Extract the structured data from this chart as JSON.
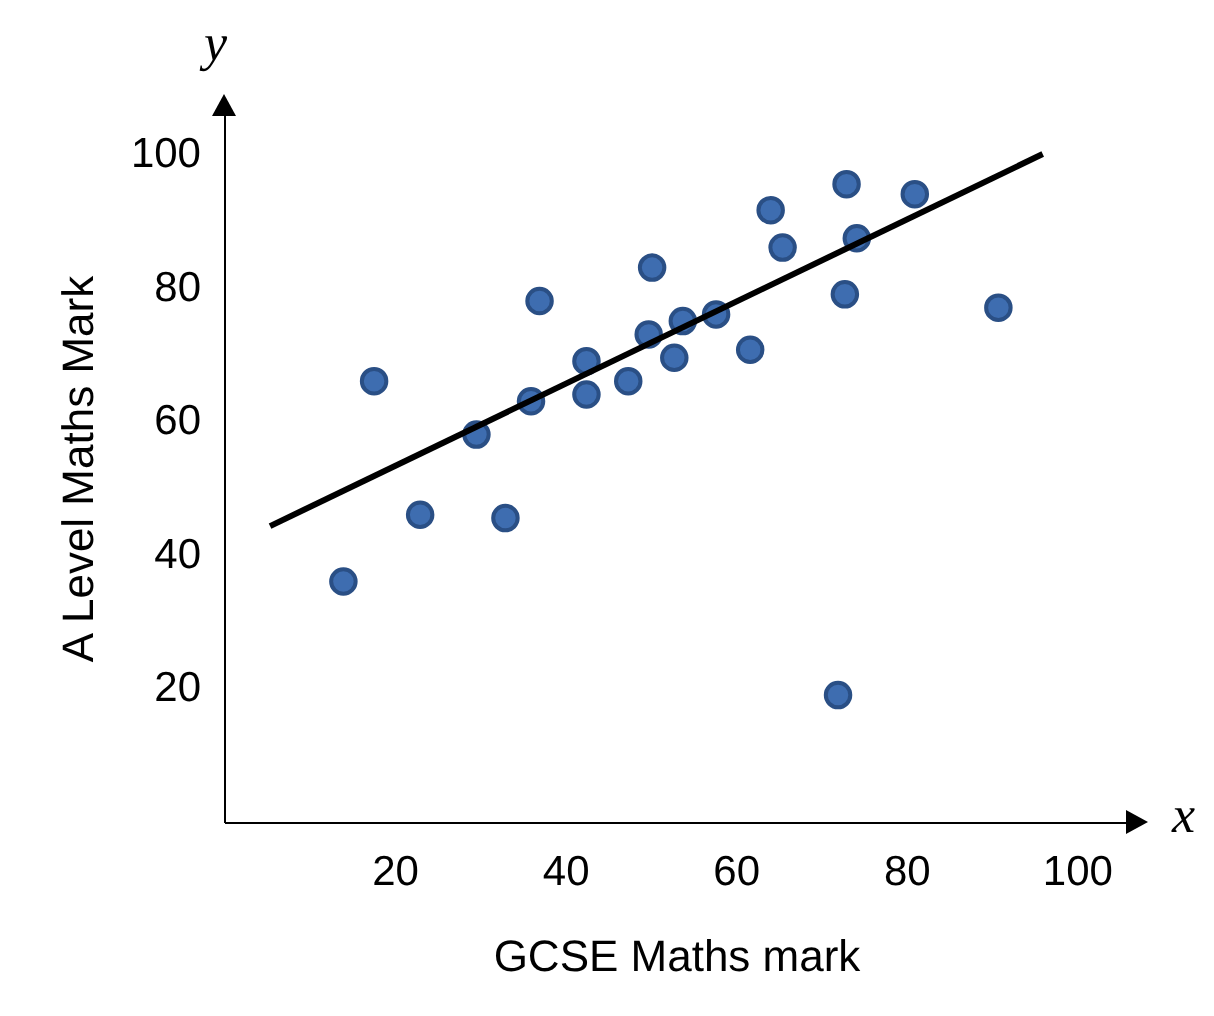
{
  "chart_data": {
    "type": "scatter",
    "xlabel": "GCSE Maths mark",
    "ylabel": "A Level Maths Mark",
    "annotations": [
      "x",
      "y"
    ],
    "xlim": [
      0,
      106
    ],
    "ylim": [
      0,
      106
    ],
    "xticks": [
      20,
      40,
      60,
      80,
      100
    ],
    "yticks": [
      20,
      40,
      60,
      80,
      100
    ],
    "grid": false,
    "series": [
      {
        "marker": "circle",
        "color": "#3e6db0",
        "x": [
          14,
          17.6,
          23,
          29.6,
          33,
          36,
          37,
          42.5,
          42.5,
          47.4,
          49.8,
          50.2,
          52.8,
          53.8,
          57.7,
          61.7,
          64.1,
          65.5,
          73,
          72.8,
          74.2,
          81,
          90.8,
          72
        ],
        "values": [
          36,
          66,
          46,
          58,
          45.5,
          63,
          78,
          69,
          64,
          66,
          73,
          83,
          69.5,
          75,
          76,
          70.7,
          91.6,
          86,
          95.5,
          79,
          87.4,
          94,
          77,
          19
        ]
      },
      {
        "type": "line",
        "color": "#000000",
        "line_style": "solid",
        "x": [
          5.4,
          96
        ],
        "values": [
          44.3,
          100
        ]
      }
    ]
  }
}
